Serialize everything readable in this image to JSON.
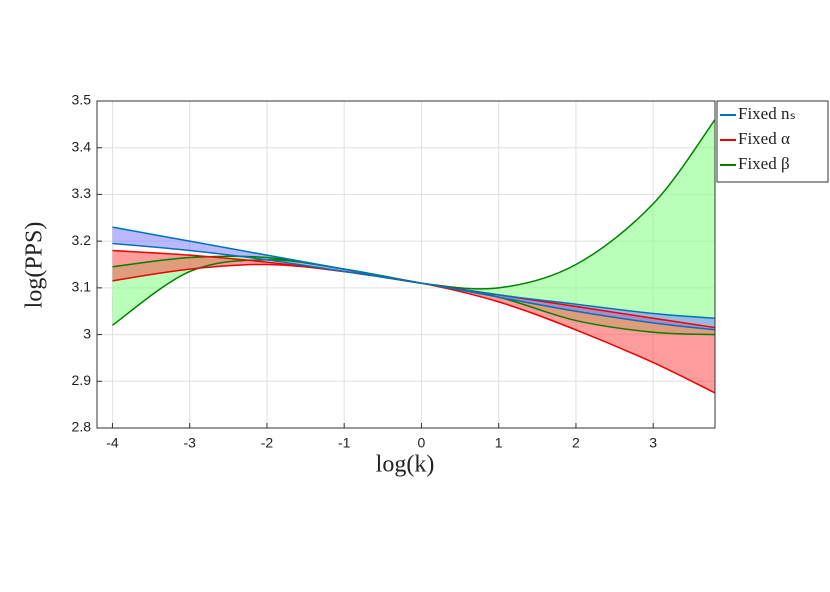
{
  "chart_data": {
    "type": "band",
    "xlabel": "log(k)",
    "ylabel": "log(PPS)",
    "x": [
      -4,
      -3,
      -2,
      -1,
      0,
      1,
      2,
      3,
      3.8
    ],
    "series": [
      {
        "name": "Fixed nₛ",
        "color": "#0072bd",
        "fill": "#8080ff",
        "upper": [
          3.23,
          3.2,
          3.17,
          3.14,
          3.11,
          3.085,
          3.065,
          3.045,
          3.035
        ],
        "lower": [
          3.195,
          3.18,
          3.16,
          3.135,
          3.11,
          3.08,
          3.05,
          3.025,
          3.01
        ]
      },
      {
        "name": "Fixed α",
        "color": "#ee0000",
        "fill": "#ff4d4d",
        "upper": [
          3.18,
          3.17,
          3.155,
          3.135,
          3.11,
          3.085,
          3.06,
          3.035,
          3.015
        ],
        "lower": [
          3.115,
          3.14,
          3.15,
          3.135,
          3.11,
          3.07,
          3.01,
          2.94,
          2.875
        ]
      },
      {
        "name": "Fixed β",
        "color": "#008000",
        "fill": "#80ff80",
        "upper": [
          3.145,
          3.165,
          3.165,
          3.14,
          3.11,
          3.1,
          3.15,
          3.28,
          3.46
        ],
        "lower": [
          3.02,
          3.135,
          3.16,
          3.14,
          3.11,
          3.08,
          3.03,
          3.005,
          3.0
        ]
      }
    ],
    "xlim": [
      -4.2,
      3.8
    ],
    "ylim": [
      2.8,
      3.5
    ],
    "xticks": [
      -4,
      -3,
      -2,
      -1,
      0,
      1,
      2,
      3
    ],
    "yticks": [
      2.8,
      2.9,
      3,
      3.1,
      3.2,
      3.3,
      3.4,
      3.5
    ],
    "grid": true,
    "legend": "outside-top-right"
  }
}
